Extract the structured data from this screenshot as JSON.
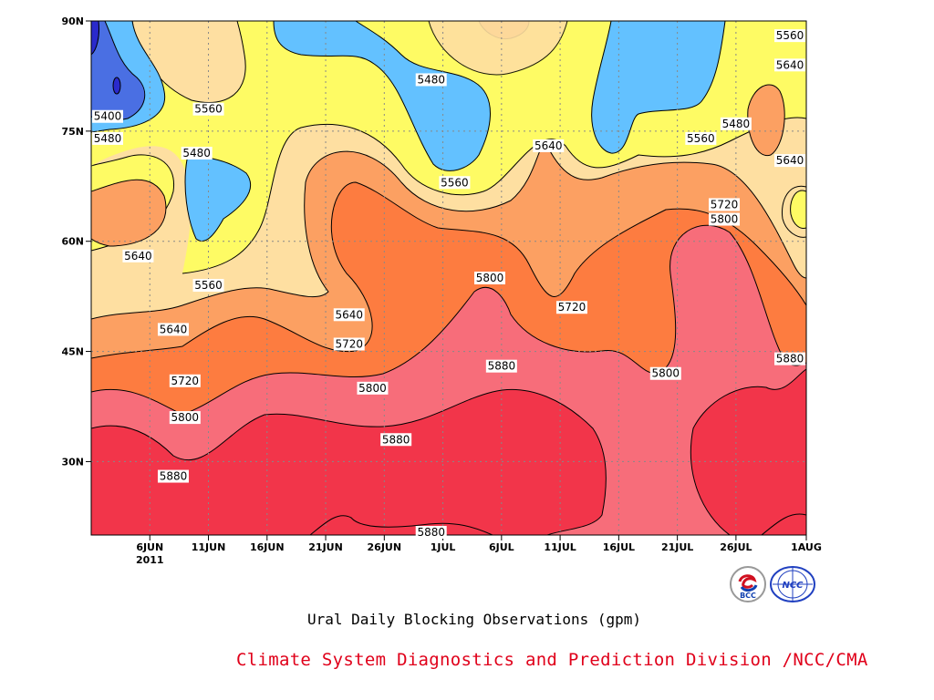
{
  "chart_data": {
    "type": "heatmap",
    "title": "Ural Daily Blocking Observations (gpm)",
    "xlabel": "",
    "ylabel": "",
    "x_ticks": [
      "6JUN",
      "11JUN",
      "16JUN",
      "21JUN",
      "26JUN",
      "1JUL",
      "6JUL",
      "11JUL",
      "16JUL",
      "21JUL",
      "26JUL",
      "1AUG"
    ],
    "x_tick_year": "2011",
    "y_ticks": [
      "30N",
      "45N",
      "60N",
      "75N",
      "90N"
    ],
    "xlim": [
      "2011-06-01",
      "2011-08-01"
    ],
    "ylim": [
      20,
      90
    ],
    "contour_levels": [
      5400,
      5480,
      5560,
      5640,
      5720,
      5800,
      5880
    ],
    "fill_colors": [
      "#4a6fe3",
      "#63c1ff",
      "#fefb64",
      "#fedfa1",
      "#fca062",
      "#fd7c40",
      "#f76d7a",
      "#f2354a"
    ],
    "grid": true,
    "contour_labels": [
      {
        "text": "5400",
        "date": "2011-06-01",
        "lat": 77
      },
      {
        "text": "5480",
        "date": "2011-06-01",
        "lat": 74
      },
      {
        "text": "5560",
        "date": "2011-06-11",
        "lat": 78
      },
      {
        "text": "5480",
        "date": "2011-06-10",
        "lat": 72
      },
      {
        "text": "5640",
        "date": "2011-06-05",
        "lat": 58
      },
      {
        "text": "5560",
        "date": "2011-06-11",
        "lat": 54
      },
      {
        "text": "5640",
        "date": "2011-06-08",
        "lat": 48
      },
      {
        "text": "5720",
        "date": "2011-06-09",
        "lat": 41
      },
      {
        "text": "5800",
        "date": "2011-06-09",
        "lat": 36
      },
      {
        "text": "5880",
        "date": "2011-06-08",
        "lat": 28
      },
      {
        "text": "5480",
        "date": "2011-06-30",
        "lat": 82
      },
      {
        "text": "5560",
        "date": "2011-07-02",
        "lat": 68
      },
      {
        "text": "5640",
        "date": "2011-06-23",
        "lat": 50
      },
      {
        "text": "5720",
        "date": "2011-06-23",
        "lat": 46
      },
      {
        "text": "5800",
        "date": "2011-06-25",
        "lat": 40
      },
      {
        "text": "5880",
        "date": "2011-06-27",
        "lat": 33
      },
      {
        "text": "5880",
        "date": "2011-06-30",
        "lat": 20
      },
      {
        "text": "5800",
        "date": "2011-07-05",
        "lat": 55
      },
      {
        "text": "5880",
        "date": "2011-07-06",
        "lat": 43
      },
      {
        "text": "5640",
        "date": "2011-07-10",
        "lat": 73
      },
      {
        "text": "5720",
        "date": "2011-07-12",
        "lat": 51
      },
      {
        "text": "5480",
        "date": "2011-07-26",
        "lat": 76
      },
      {
        "text": "5560",
        "date": "2011-07-23",
        "lat": 74
      },
      {
        "text": "5720",
        "date": "2011-07-25",
        "lat": 65
      },
      {
        "text": "5800",
        "date": "2011-07-25",
        "lat": 63
      },
      {
        "text": "5800",
        "date": "2011-07-20",
        "lat": 42
      },
      {
        "text": "5640",
        "date": "2011-07-31",
        "lat": 71
      },
      {
        "text": "5880",
        "date": "2011-07-31",
        "lat": 44
      },
      {
        "text": "5560",
        "date": "2011-08-02",
        "lat": 88
      },
      {
        "text": "5640",
        "date": "2011-08-02",
        "lat": 84
      }
    ]
  },
  "credit": "Climate System Diagnostics and Prediction Division /NCC/CMA",
  "logos": [
    {
      "name": "bcc-logo",
      "text": "BCC"
    },
    {
      "name": "ncc-logo",
      "text": "NCC"
    }
  ]
}
